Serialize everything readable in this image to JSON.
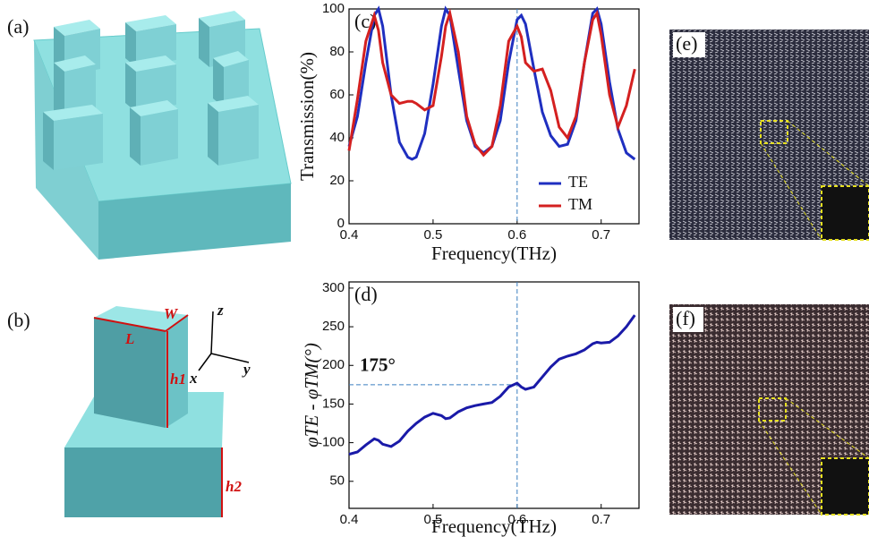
{
  "panels": {
    "a": "(a)",
    "b": "(b)",
    "e": "(e)",
    "f": "(f)",
    "diagram_labels": {
      "L": "L",
      "W": "W",
      "h1": "h1",
      "h2": "h2",
      "x": "x",
      "y": "y",
      "z": "z"
    }
  },
  "chart_data": [
    {
      "type": "line",
      "panel_label": "(c)",
      "x_label": "Frequency(THz)",
      "y_label": "Transmission(%)",
      "x": [
        0.4,
        0.41,
        0.42,
        0.43,
        0.435,
        0.44,
        0.45,
        0.46,
        0.47,
        0.475,
        0.48,
        0.49,
        0.5,
        0.51,
        0.515,
        0.52,
        0.53,
        0.54,
        0.55,
        0.56,
        0.57,
        0.58,
        0.59,
        0.6,
        0.605,
        0.61,
        0.62,
        0.63,
        0.64,
        0.65,
        0.66,
        0.67,
        0.68,
        0.69,
        0.695,
        0.7,
        0.71,
        0.72,
        0.73,
        0.74
      ],
      "series": [
        {
          "name": "TE",
          "color": "#1f2fc0",
          "values": [
            36,
            50,
            75,
            97,
            100,
            92,
            60,
            38,
            31,
            30,
            31,
            42,
            65,
            92,
            100,
            97,
            72,
            48,
            36,
            33,
            36,
            48,
            75,
            95,
            97,
            93,
            72,
            52,
            41,
            36,
            37,
            48,
            75,
            98,
            100,
            93,
            66,
            44,
            33,
            30
          ]
        },
        {
          "name": "TM",
          "color": "#d42020",
          "values": [
            34,
            58,
            85,
            97,
            90,
            75,
            60,
            56,
            57,
            57,
            56,
            53,
            55,
            78,
            92,
            98,
            80,
            50,
            37,
            32,
            36,
            55,
            85,
            92,
            87,
            75,
            71,
            72,
            62,
            45,
            40,
            50,
            75,
            95,
            98,
            88,
            60,
            45,
            55,
            72
          ]
        }
      ],
      "xlim": [
        0.4,
        0.745
      ],
      "xticks": [
        0.4,
        0.5,
        0.6,
        0.7
      ],
      "ylim": [
        0,
        100
      ],
      "yticks": [
        0,
        20,
        40,
        60,
        80,
        100
      ],
      "ref_lines": {
        "x": 0.6
      },
      "legend": "lower-right",
      "grid": false
    },
    {
      "type": "line",
      "panel_label": "(d)",
      "x_label": "Frequency(THz)",
      "y_label": "φTE - φTM(°)",
      "x": [
        0.4,
        0.41,
        0.42,
        0.43,
        0.435,
        0.44,
        0.45,
        0.46,
        0.47,
        0.475,
        0.48,
        0.49,
        0.5,
        0.51,
        0.515,
        0.52,
        0.53,
        0.54,
        0.55,
        0.56,
        0.57,
        0.58,
        0.59,
        0.6,
        0.605,
        0.61,
        0.62,
        0.63,
        0.64,
        0.65,
        0.66,
        0.67,
        0.68,
        0.69,
        0.695,
        0.7,
        0.71,
        0.72,
        0.73,
        0.74
      ],
      "series": [
        {
          "color": "#1a1aa8",
          "values": [
            85,
            88,
            97,
            105,
            103,
            98,
            95,
            102,
            115,
            120,
            125,
            133,
            138,
            135,
            131,
            132,
            140,
            145,
            148,
            150,
            152,
            160,
            172,
            177,
            172,
            169,
            172,
            185,
            198,
            208,
            212,
            215,
            220,
            228,
            230,
            229,
            230,
            238,
            250,
            265
          ]
        }
      ],
      "xlim": [
        0.4,
        0.745
      ],
      "xticks": [
        0.4,
        0.5,
        0.6,
        0.7
      ],
      "ylim": [
        15,
        308
      ],
      "yticks": [
        50,
        100,
        150,
        200,
        250,
        300
      ],
      "ref_lines": {
        "x": 0.6,
        "y": 175
      },
      "annotation": "175°",
      "grid": false
    }
  ]
}
